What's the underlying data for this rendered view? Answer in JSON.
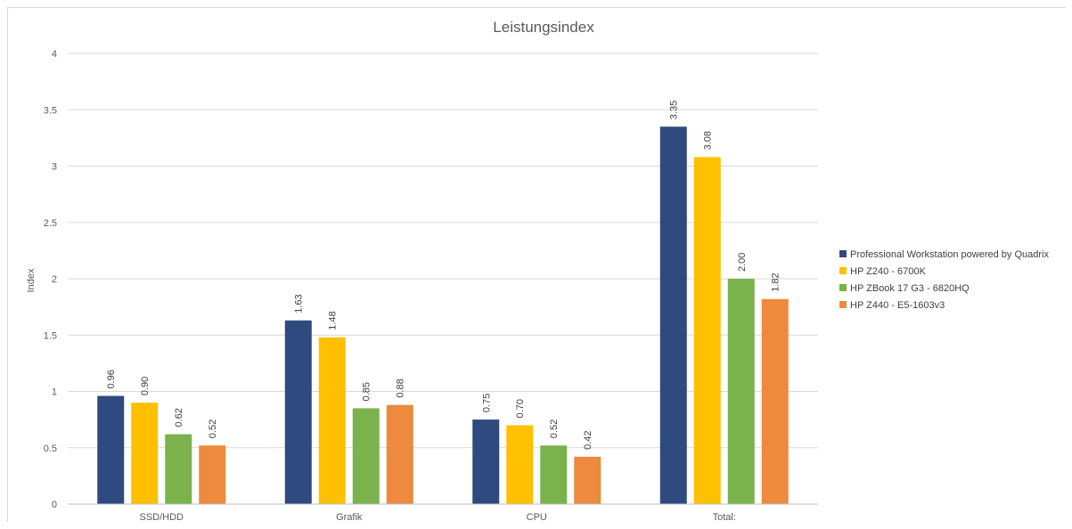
{
  "chart_data": {
    "type": "bar",
    "title": "Leistungsindex",
    "xlabel": "",
    "ylabel": "Index",
    "ylim": [
      0,
      4
    ],
    "yticks": [
      "0",
      "0.5",
      "1",
      "1.5",
      "2",
      "2.5",
      "3",
      "3.5",
      "4"
    ],
    "grid": true,
    "legend_position": "right",
    "categories": [
      "SSD/HDD",
      "Grafik",
      "CPU",
      "Total:"
    ],
    "series": [
      {
        "name": "Professional Workstation powered by Quadrix",
        "color": "#2e4a7e",
        "values": [
          0.96,
          1.63,
          0.75,
          3.35
        ],
        "labels": [
          "0.96",
          "1.63",
          "0.75",
          "3.35"
        ]
      },
      {
        "name": "HP Z240 - 6700K",
        "color": "#ffc000",
        "values": [
          0.9,
          1.48,
          0.7,
          3.08
        ],
        "labels": [
          "0.90",
          "1.48",
          "0.70",
          "3.08"
        ]
      },
      {
        "name": "HP ZBook 17 G3 - 6820HQ",
        "color": "#7ab24c",
        "values": [
          0.62,
          0.85,
          0.52,
          2.0
        ],
        "labels": [
          "0.62",
          "0.85",
          "0.52",
          "2.00"
        ]
      },
      {
        "name": "HP Z440 - E5-1603v3",
        "color": "#ed8a3d",
        "values": [
          0.52,
          0.88,
          0.42,
          1.82
        ],
        "labels": [
          "0.52",
          "0.88",
          "0.42",
          "1.82"
        ]
      }
    ]
  }
}
